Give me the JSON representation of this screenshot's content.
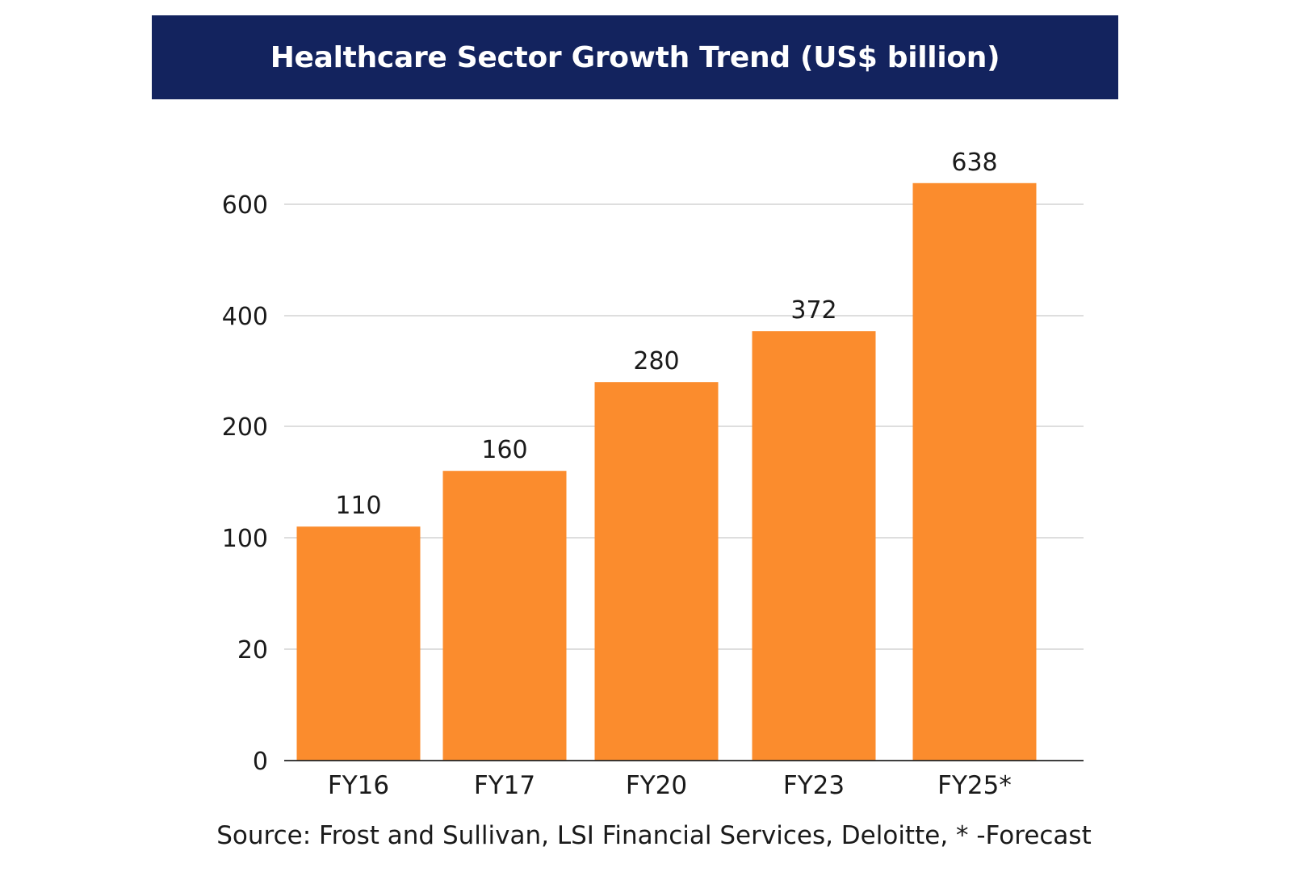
{
  "chart_data": {
    "type": "bar",
    "title": "Healthcare Sector Growth Trend (US$ billion)",
    "categories": [
      "FY16",
      "FY17",
      "FY20",
      "FY23",
      "FY25*"
    ],
    "values": [
      110,
      160,
      280,
      372,
      638
    ],
    "value_labels": [
      "110",
      "160",
      "280",
      "372",
      "638"
    ],
    "y_ticks": [
      0,
      20,
      100,
      200,
      400,
      600
    ],
    "y_tick_labels": [
      "0",
      "20",
      "100",
      "200",
      "400",
      "600"
    ],
    "xlabel": "",
    "ylabel": "",
    "grid": true,
    "legend": "none",
    "bar_color": "#fb8c2d",
    "source": "Source: Frost and Sullivan, LSI Financial Services, Deloitte, * -Forecast"
  },
  "colors": {
    "title_background": "#13235e",
    "bar": "#fb8c2d",
    "gridline": "#c9c9c9",
    "axis": "#222222"
  }
}
